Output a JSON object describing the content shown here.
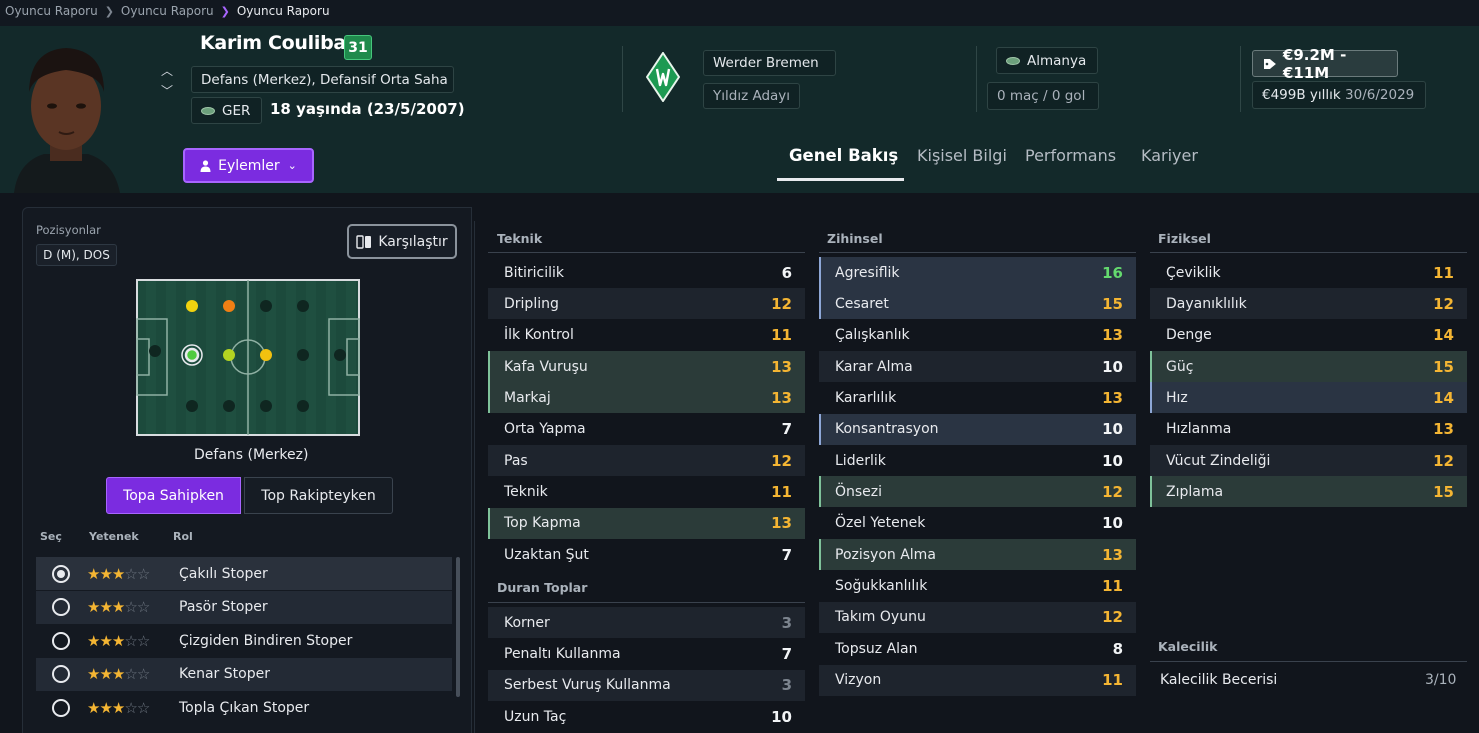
{
  "breadcrumb": [
    "Oyuncu Raporu",
    "Oyuncu Raporu",
    "Oyuncu Raporu"
  ],
  "player": {
    "name": "Karim Coulibaly",
    "ability": "31",
    "positions": "Defans (Merkez), Defansif Orta Saha",
    "nationality_code": "GER",
    "age_text": "18 yaşında (23/5/2007)",
    "club": "Werder Bremen",
    "status": "Yıldız Adayı",
    "country": "Almanya",
    "caps": "0 maç / 0 gol",
    "value": "€9.2M - €11M",
    "wage": "€499B yıllık",
    "contract_end": "30/6/2029",
    "actions_label": "Eylemler"
  },
  "tabs": [
    "Genel Bakış",
    "Kişisel Bilgi",
    "Performans",
    "Kariyer"
  ],
  "positions_panel": {
    "label": "Pozisyonlar",
    "badge": "D (M), DOS",
    "compare_label": "Karşılaştır",
    "pitch_label": "Defans (Merkez)",
    "btn_with_ball": "Topa Sahipken",
    "btn_without_ball": "Top Rakipteyken",
    "col_select": "Seç",
    "col_ability": "Yetenek",
    "col_role": "Rol",
    "roles": [
      {
        "name": "Çakılı Stoper",
        "stars": 3,
        "selected": true
      },
      {
        "name": "Pasör Stoper",
        "stars": 3,
        "selected": false
      },
      {
        "name": "Çizgiden Bindiren Stoper",
        "stars": 3,
        "selected": false
      },
      {
        "name": "Kenar Stoper",
        "stars": 3,
        "selected": false
      },
      {
        "name": "Topla Çıkan Stoper",
        "stars": 3,
        "selected": false
      }
    ]
  },
  "attributes": {
    "technical": {
      "title": "Teknik",
      "items": [
        {
          "name": "Bitiricilik",
          "value": "6",
          "hl": ""
        },
        {
          "name": "Dripling",
          "value": "12",
          "hl": "d"
        },
        {
          "name": "İlk Kontrol",
          "value": "11",
          "hl": ""
        },
        {
          "name": "Kafa Vuruşu",
          "value": "13",
          "hl": "g"
        },
        {
          "name": "Markaj",
          "value": "13",
          "hl": "g"
        },
        {
          "name": "Orta Yapma",
          "value": "7",
          "hl": ""
        },
        {
          "name": "Pas",
          "value": "12",
          "hl": "d"
        },
        {
          "name": "Teknik",
          "value": "11",
          "hl": ""
        },
        {
          "name": "Top Kapma",
          "value": "13",
          "hl": "g"
        },
        {
          "name": "Uzaktan Şut",
          "value": "7",
          "hl": ""
        }
      ]
    },
    "set_pieces": {
      "title": "Duran Toplar",
      "items": [
        {
          "name": "Korner",
          "value": "3",
          "hl": "d"
        },
        {
          "name": "Penaltı Kullanma",
          "value": "7",
          "hl": ""
        },
        {
          "name": "Serbest Vuruş Kullanma",
          "value": "3",
          "hl": "d"
        },
        {
          "name": "Uzun Taç",
          "value": "10",
          "hl": ""
        }
      ]
    },
    "mental": {
      "title": "Zihinsel",
      "items": [
        {
          "name": "Agresiflik",
          "value": "16",
          "hl": "b"
        },
        {
          "name": "Cesaret",
          "value": "15",
          "hl": "b"
        },
        {
          "name": "Çalışkanlık",
          "value": "13",
          "hl": ""
        },
        {
          "name": "Karar Alma",
          "value": "10",
          "hl": "d"
        },
        {
          "name": "Kararlılık",
          "value": "13",
          "hl": ""
        },
        {
          "name": "Konsantrasyon",
          "value": "10",
          "hl": "b"
        },
        {
          "name": "Liderlik",
          "value": "10",
          "hl": ""
        },
        {
          "name": "Önsezi",
          "value": "12",
          "hl": "g"
        },
        {
          "name": "Özel Yetenek",
          "value": "10",
          "hl": ""
        },
        {
          "name": "Pozisyon Alma",
          "value": "13",
          "hl": "g"
        },
        {
          "name": "Soğukkanlılık",
          "value": "11",
          "hl": ""
        },
        {
          "name": "Takım Oyunu",
          "value": "12",
          "hl": "d"
        },
        {
          "name": "Topsuz Alan",
          "value": "8",
          "hl": ""
        },
        {
          "name": "Vizyon",
          "value": "11",
          "hl": "d"
        }
      ]
    },
    "physical": {
      "title": "Fiziksel",
      "items": [
        {
          "name": "Çeviklik",
          "value": "11",
          "hl": ""
        },
        {
          "name": "Dayanıklılık",
          "value": "12",
          "hl": "d"
        },
        {
          "name": "Denge",
          "value": "14",
          "hl": ""
        },
        {
          "name": "Güç",
          "value": "15",
          "hl": "g"
        },
        {
          "name": "Hız",
          "value": "14",
          "hl": "b"
        },
        {
          "name": "Hızlanma",
          "value": "13",
          "hl": ""
        },
        {
          "name": "Vücut Zindeliği",
          "value": "12",
          "hl": "d"
        },
        {
          "name": "Zıplama",
          "value": "15",
          "hl": "g"
        }
      ]
    },
    "goalkeeping": {
      "title": "Kalecilik",
      "skill_label": "Kalecilik Becerisi",
      "skill_value": "3/10"
    }
  }
}
